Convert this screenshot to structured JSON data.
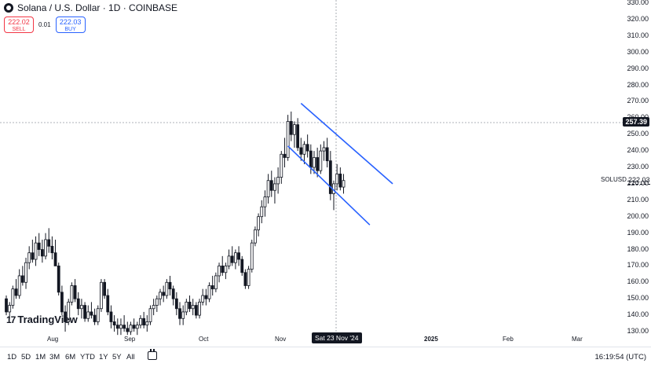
{
  "header": {
    "title": "Solana / U.S. Dollar · 1D · COINBASE",
    "icon": "solana-logo-icon"
  },
  "trade": {
    "sell_price": "222.02",
    "sell_label": "SELL",
    "spread": "0.01",
    "buy_price": "222.03",
    "buy_label": "BUY"
  },
  "price_axis": {
    "labels": [
      "330.00",
      "320.00",
      "310.00",
      "300.00",
      "290.00",
      "280.00",
      "270.00",
      "260.00",
      "250.00",
      "240.00",
      "230.00",
      "220.00",
      "210.00",
      "200.00",
      "190.00",
      "180.00",
      "170.00",
      "160.00",
      "150.00",
      "140.00",
      "130.00"
    ]
  },
  "last_price": "257.39",
  "ticker": {
    "symbol": "SOLUSD",
    "price": "222.03"
  },
  "crosshair_date": "Sat 23 Nov '24",
  "time_axis": {
    "labels": [
      "Aug",
      "Sep",
      "Oct",
      "Nov",
      "2025",
      "Feb",
      "Mar"
    ]
  },
  "logo_text": "TradingView",
  "bottom_bar": {
    "timeframes": [
      "1D",
      "5D",
      "1M",
      "3M",
      "6M",
      "YTD",
      "1Y",
      "5Y",
      "All"
    ],
    "clock": "16:19:54 (UTC)"
  },
  "colors": {
    "up": "#089981",
    "down": "#f23645",
    "candle": "#131722",
    "channel": "#2962ff",
    "crosshair": "#9598a1"
  },
  "chart_data": {
    "type": "candlestick",
    "symbol": "SOLUSD",
    "ylim": [
      127,
      335
    ],
    "x_labels": [
      "Aug",
      "Sep",
      "Oct",
      "Nov",
      "2025",
      "Feb",
      "Mar"
    ],
    "candles": [
      {
        "o": 150,
        "h": 152,
        "l": 140,
        "c": 142
      },
      {
        "o": 142,
        "h": 148,
        "l": 138,
        "c": 146
      },
      {
        "o": 146,
        "h": 158,
        "l": 144,
        "c": 156
      },
      {
        "o": 156,
        "h": 162,
        "l": 150,
        "c": 152
      },
      {
        "o": 152,
        "h": 168,
        "l": 150,
        "c": 164
      },
      {
        "o": 164,
        "h": 170,
        "l": 158,
        "c": 160
      },
      {
        "o": 160,
        "h": 175,
        "l": 156,
        "c": 172
      },
      {
        "o": 172,
        "h": 182,
        "l": 168,
        "c": 178
      },
      {
        "o": 178,
        "h": 186,
        "l": 172,
        "c": 174
      },
      {
        "o": 174,
        "h": 188,
        "l": 170,
        "c": 184
      },
      {
        "o": 184,
        "h": 190,
        "l": 176,
        "c": 180
      },
      {
        "o": 180,
        "h": 186,
        "l": 172,
        "c": 176
      },
      {
        "o": 176,
        "h": 190,
        "l": 174,
        "c": 186
      },
      {
        "o": 186,
        "h": 193,
        "l": 178,
        "c": 182
      },
      {
        "o": 182,
        "h": 188,
        "l": 174,
        "c": 178
      },
      {
        "o": 178,
        "h": 186,
        "l": 170,
        "c": 170
      },
      {
        "o": 170,
        "h": 172,
        "l": 152,
        "c": 154
      },
      {
        "o": 154,
        "h": 158,
        "l": 140,
        "c": 142
      },
      {
        "o": 142,
        "h": 146,
        "l": 130,
        "c": 136
      },
      {
        "o": 136,
        "h": 150,
        "l": 134,
        "c": 148
      },
      {
        "o": 148,
        "h": 160,
        "l": 146,
        "c": 158
      },
      {
        "o": 158,
        "h": 162,
        "l": 148,
        "c": 150
      },
      {
        "o": 150,
        "h": 154,
        "l": 140,
        "c": 144
      },
      {
        "o": 144,
        "h": 150,
        "l": 138,
        "c": 146
      },
      {
        "o": 146,
        "h": 148,
        "l": 136,
        "c": 138
      },
      {
        "o": 138,
        "h": 146,
        "l": 136,
        "c": 142
      },
      {
        "o": 142,
        "h": 148,
        "l": 138,
        "c": 140
      },
      {
        "o": 140,
        "h": 144,
        "l": 134,
        "c": 136
      },
      {
        "o": 136,
        "h": 146,
        "l": 134,
        "c": 144
      },
      {
        "o": 144,
        "h": 162,
        "l": 142,
        "c": 160
      },
      {
        "o": 160,
        "h": 162,
        "l": 150,
        "c": 152
      },
      {
        "o": 152,
        "h": 156,
        "l": 140,
        "c": 142
      },
      {
        "o": 142,
        "h": 146,
        "l": 132,
        "c": 136
      },
      {
        "o": 136,
        "h": 140,
        "l": 130,
        "c": 134
      },
      {
        "o": 134,
        "h": 138,
        "l": 128,
        "c": 132
      },
      {
        "o": 132,
        "h": 138,
        "l": 128,
        "c": 134
      },
      {
        "o": 134,
        "h": 140,
        "l": 130,
        "c": 132
      },
      {
        "o": 132,
        "h": 136,
        "l": 128,
        "c": 130
      },
      {
        "o": 130,
        "h": 136,
        "l": 128,
        "c": 134
      },
      {
        "o": 134,
        "h": 138,
        "l": 130,
        "c": 132
      },
      {
        "o": 132,
        "h": 136,
        "l": 128,
        "c": 134
      },
      {
        "o": 134,
        "h": 140,
        "l": 132,
        "c": 138
      },
      {
        "o": 138,
        "h": 142,
        "l": 132,
        "c": 134
      },
      {
        "o": 134,
        "h": 140,
        "l": 130,
        "c": 136
      },
      {
        "o": 136,
        "h": 146,
        "l": 134,
        "c": 144
      },
      {
        "o": 144,
        "h": 150,
        "l": 140,
        "c": 146
      },
      {
        "o": 146,
        "h": 152,
        "l": 142,
        "c": 150
      },
      {
        "o": 150,
        "h": 156,
        "l": 146,
        "c": 154
      },
      {
        "o": 154,
        "h": 158,
        "l": 148,
        "c": 152
      },
      {
        "o": 152,
        "h": 162,
        "l": 150,
        "c": 160
      },
      {
        "o": 160,
        "h": 164,
        "l": 152,
        "c": 156
      },
      {
        "o": 156,
        "h": 158,
        "l": 146,
        "c": 150
      },
      {
        "o": 150,
        "h": 154,
        "l": 140,
        "c": 144
      },
      {
        "o": 144,
        "h": 148,
        "l": 134,
        "c": 138
      },
      {
        "o": 138,
        "h": 146,
        "l": 134,
        "c": 142
      },
      {
        "o": 142,
        "h": 150,
        "l": 140,
        "c": 148
      },
      {
        "o": 148,
        "h": 152,
        "l": 142,
        "c": 144
      },
      {
        "o": 144,
        "h": 150,
        "l": 140,
        "c": 146
      },
      {
        "o": 146,
        "h": 148,
        "l": 138,
        "c": 140
      },
      {
        "o": 140,
        "h": 150,
        "l": 138,
        "c": 148
      },
      {
        "o": 148,
        "h": 156,
        "l": 146,
        "c": 152
      },
      {
        "o": 152,
        "h": 156,
        "l": 146,
        "c": 150
      },
      {
        "o": 150,
        "h": 160,
        "l": 148,
        "c": 158
      },
      {
        "o": 158,
        "h": 164,
        "l": 152,
        "c": 156
      },
      {
        "o": 156,
        "h": 166,
        "l": 154,
        "c": 164
      },
      {
        "o": 164,
        "h": 172,
        "l": 160,
        "c": 170
      },
      {
        "o": 170,
        "h": 176,
        "l": 164,
        "c": 166
      },
      {
        "o": 166,
        "h": 172,
        "l": 162,
        "c": 170
      },
      {
        "o": 170,
        "h": 180,
        "l": 168,
        "c": 176
      },
      {
        "o": 176,
        "h": 182,
        "l": 170,
        "c": 172
      },
      {
        "o": 172,
        "h": 180,
        "l": 168,
        "c": 178
      },
      {
        "o": 178,
        "h": 182,
        "l": 170,
        "c": 174
      },
      {
        "o": 174,
        "h": 176,
        "l": 164,
        "c": 166
      },
      {
        "o": 166,
        "h": 168,
        "l": 156,
        "c": 158
      },
      {
        "o": 158,
        "h": 170,
        "l": 156,
        "c": 168
      },
      {
        "o": 168,
        "h": 186,
        "l": 166,
        "c": 184
      },
      {
        "o": 184,
        "h": 194,
        "l": 182,
        "c": 192
      },
      {
        "o": 192,
        "h": 202,
        "l": 188,
        "c": 200
      },
      {
        "o": 200,
        "h": 210,
        "l": 196,
        "c": 206
      },
      {
        "o": 206,
        "h": 216,
        "l": 200,
        "c": 212
      },
      {
        "o": 212,
        "h": 226,
        "l": 208,
        "c": 222
      },
      {
        "o": 222,
        "h": 228,
        "l": 212,
        "c": 216
      },
      {
        "o": 216,
        "h": 224,
        "l": 208,
        "c": 220
      },
      {
        "o": 220,
        "h": 230,
        "l": 214,
        "c": 224
      },
      {
        "o": 224,
        "h": 240,
        "l": 220,
        "c": 238
      },
      {
        "o": 238,
        "h": 248,
        "l": 230,
        "c": 236
      },
      {
        "o": 236,
        "h": 262,
        "l": 234,
        "c": 258
      },
      {
        "o": 258,
        "h": 264,
        "l": 246,
        "c": 250
      },
      {
        "o": 250,
        "h": 258,
        "l": 242,
        "c": 256
      },
      {
        "o": 256,
        "h": 260,
        "l": 240,
        "c": 242
      },
      {
        "o": 242,
        "h": 248,
        "l": 234,
        "c": 238
      },
      {
        "o": 238,
        "h": 246,
        "l": 232,
        "c": 244
      },
      {
        "o": 244,
        "h": 250,
        "l": 236,
        "c": 240
      },
      {
        "o": 240,
        "h": 244,
        "l": 226,
        "c": 230
      },
      {
        "o": 230,
        "h": 240,
        "l": 226,
        "c": 236
      },
      {
        "o": 236,
        "h": 242,
        "l": 224,
        "c": 228
      },
      {
        "o": 228,
        "h": 244,
        "l": 226,
        "c": 240
      },
      {
        "o": 240,
        "h": 246,
        "l": 234,
        "c": 242
      },
      {
        "o": 242,
        "h": 248,
        "l": 230,
        "c": 234
      },
      {
        "o": 234,
        "h": 240,
        "l": 210,
        "c": 214
      },
      {
        "o": 214,
        "h": 222,
        "l": 204,
        "c": 220
      },
      {
        "o": 220,
        "h": 232,
        "l": 216,
        "c": 226
      },
      {
        "o": 226,
        "h": 230,
        "l": 216,
        "c": 218
      },
      {
        "o": 218,
        "h": 226,
        "l": 214,
        "c": 222
      }
    ],
    "channel_lines": [
      {
        "name": "upper",
        "x1_index": 90,
        "y1": 269,
        "x2_index": 118,
        "y2": 220
      },
      {
        "name": "lower",
        "x1_index": 86,
        "y1": 243,
        "x2_index": 111,
        "y2": 195
      }
    ],
    "last_price": 257.39,
    "current_price": 222.03
  }
}
